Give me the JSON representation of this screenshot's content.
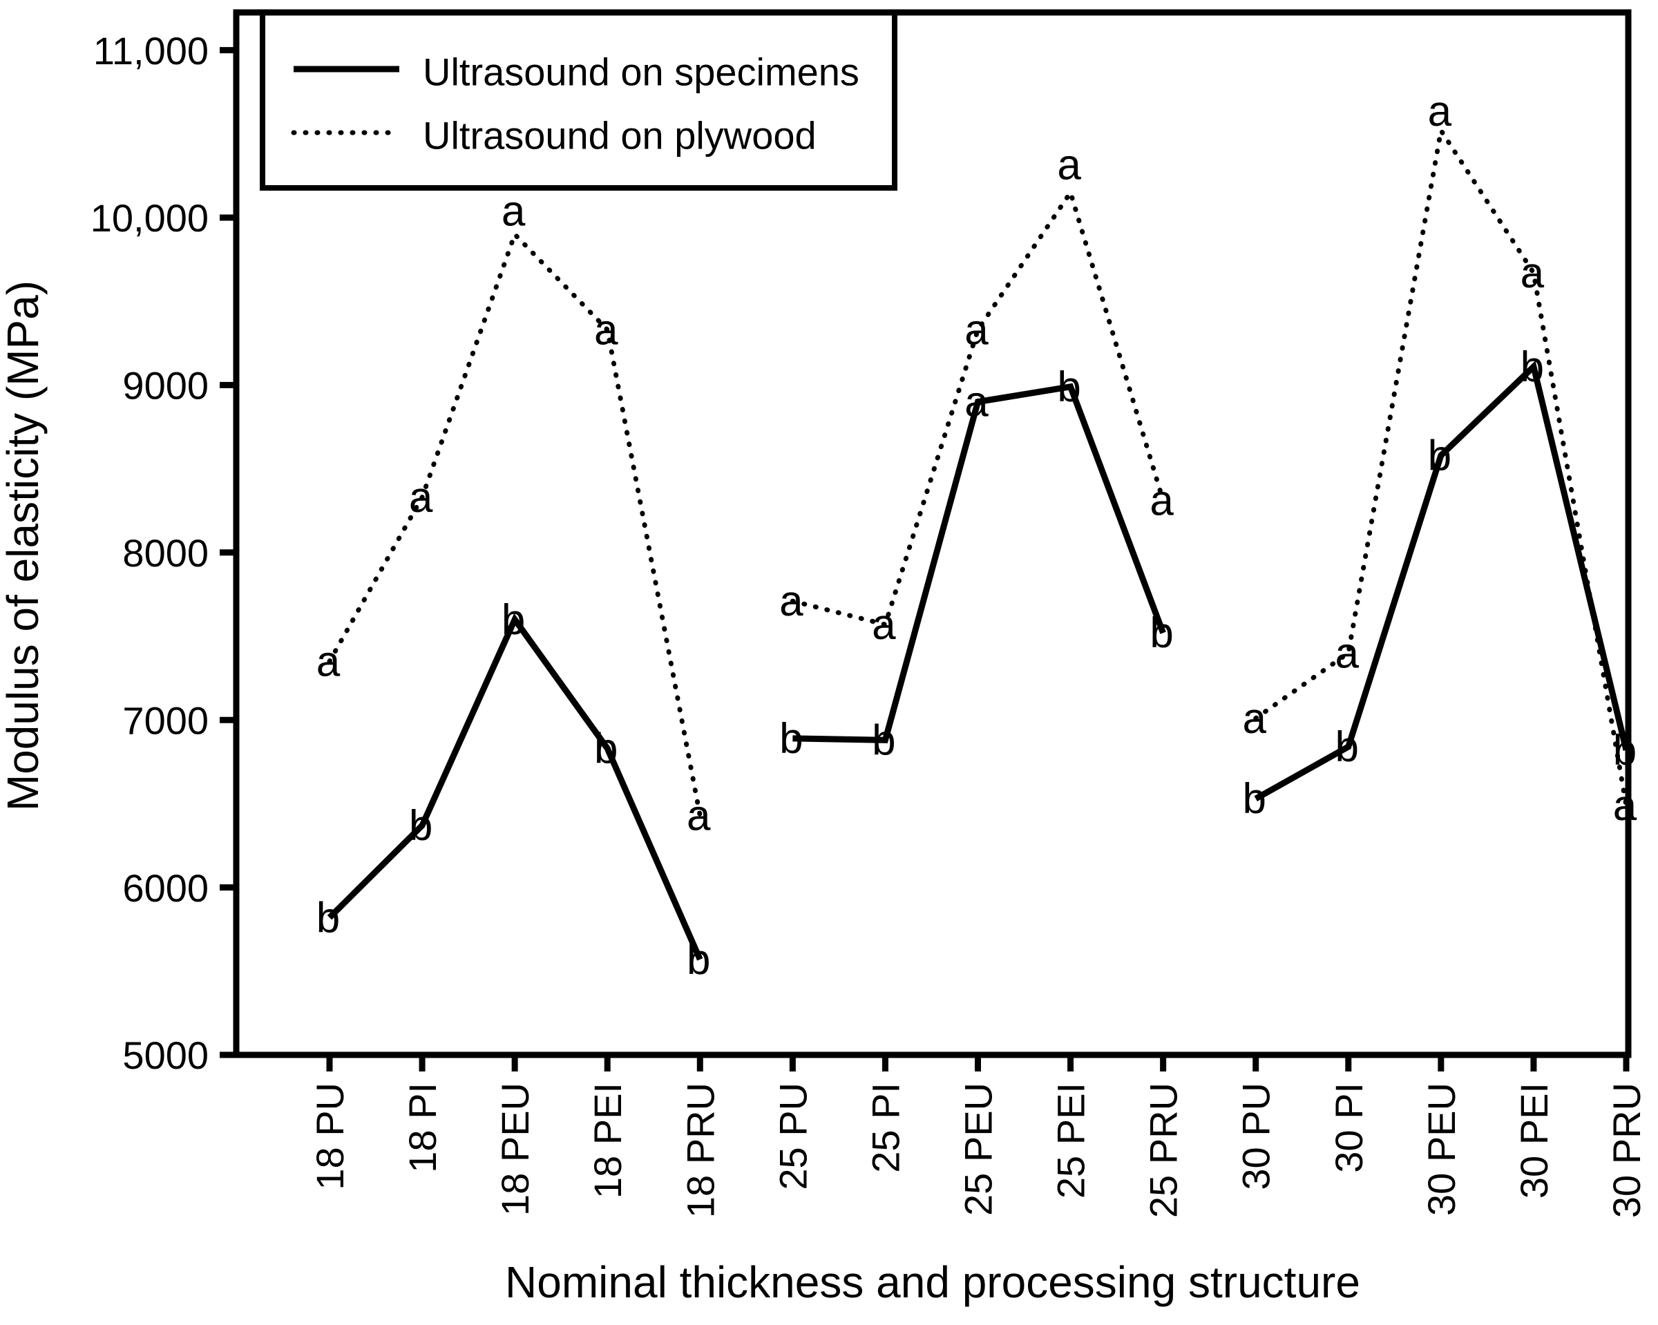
{
  "figure": {
    "background": "#ffffff",
    "foreground": "#000000",
    "y_axis": {
      "title": "Modulus of elasticity (MPa)",
      "tick_labels": [
        "5000",
        "6000",
        "7000",
        "8000",
        "9000",
        "10,000",
        "11,000"
      ],
      "tick_values": [
        5000,
        6000,
        7000,
        8000,
        9000,
        10000,
        11000
      ]
    },
    "x_axis": {
      "title": "Nominal thickness and processing structure"
    },
    "legend": {
      "items": [
        {
          "label": "Ultrasound on specimens",
          "style": "solid"
        },
        {
          "label": "Ultrasound on plywood",
          "style": "dotted"
        }
      ]
    }
  },
  "chart_data": {
    "type": "line",
    "title": "",
    "xlabel": "Nominal thickness and processing structure",
    "ylabel": "Modulus of elasticity (MPa)",
    "ylim": [
      5000,
      11000
    ],
    "grid": false,
    "legend_position": "top-left",
    "categories": [
      "18 PU",
      "18 PI",
      "18 PEU",
      "18 PEI",
      "18 PRU",
      "25 PU",
      "25 PI",
      "25 PEU",
      "25 PEI",
      "25 PRU",
      "30 PU",
      "30 PI",
      "30 PEU",
      "30 PEI",
      "30 PRU"
    ],
    "group_segments": [
      [
        0,
        4
      ],
      [
        5,
        9
      ],
      [
        10,
        14
      ]
    ],
    "series": [
      {
        "name": "Ultrasound on specimens",
        "style": "solid",
        "values": [
          5820,
          6370,
          7600,
          6830,
          5570,
          6890,
          6880,
          8900,
          8990,
          7520,
          6530,
          6840,
          8580,
          9110,
          6820
        ],
        "point_labels": [
          "b",
          "b",
          "b",
          "b",
          "b",
          "b",
          "b",
          "a",
          "b",
          "b",
          "b",
          "b",
          "b",
          "b",
          "b"
        ],
        "label_dy": [
          0,
          0,
          0,
          0,
          0,
          0,
          0,
          0,
          0,
          0,
          0,
          0,
          0,
          0,
          0
        ]
      },
      {
        "name": "Ultrasound on plywood",
        "style": "dotted",
        "values": [
          7350,
          8330,
          9900,
          9330,
          6430,
          7710,
          7570,
          9330,
          10150,
          8310,
          7010,
          7400,
          10520,
          9670,
          6490
        ],
        "point_labels": [
          "a",
          "a",
          "a",
          "a",
          "a",
          "a",
          "a",
          "a",
          "a",
          "a",
          "a",
          "a",
          "a",
          "a",
          "a"
        ],
        "label_dy": [
          0,
          0,
          -34,
          0,
          0,
          0,
          0,
          0,
          -40,
          0,
          0,
          0,
          -28,
          0,
          0
        ]
      }
    ]
  }
}
